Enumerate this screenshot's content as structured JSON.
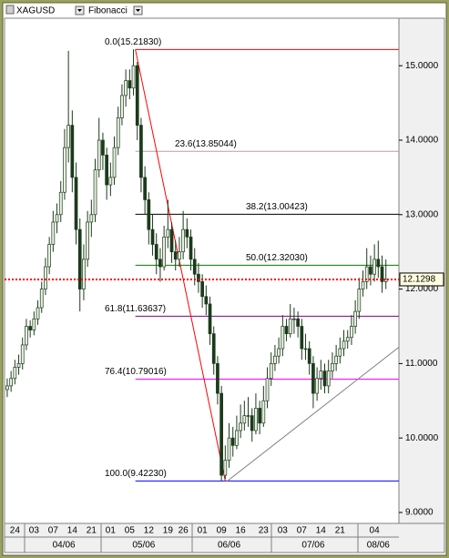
{
  "chart_data": {
    "type": "candlestick",
    "symbol": "XAGUSD",
    "indicator": "Fibonacci",
    "xlim": [
      -0.7,
      102.4
    ],
    "ylim": [
      8.853,
      15.638
    ],
    "yticks": [
      {
        "value": 15,
        "label": "15.0000"
      },
      {
        "value": 14,
        "label": "14.0000"
      },
      {
        "value": 13,
        "label": "13.0000"
      },
      {
        "value": 12,
        "label": "12.0000"
      },
      {
        "value": 11,
        "label": "11.0000"
      },
      {
        "value": 10,
        "label": "10.0000"
      },
      {
        "value": 9,
        "label": "9.0000"
      }
    ],
    "xticks": [
      {
        "value": 2,
        "label": "24"
      },
      {
        "value": 7,
        "label": "03"
      },
      {
        "value": 12,
        "label": "07"
      },
      {
        "value": 17,
        "label": "14"
      },
      {
        "value": 22,
        "label": "21"
      },
      {
        "value": 27,
        "label": "01"
      },
      {
        "value": 32,
        "label": "05"
      },
      {
        "value": 37,
        "label": "12"
      },
      {
        "value": 42,
        "label": "19"
      },
      {
        "value": 46,
        "label": "26"
      },
      {
        "value": 51,
        "label": "01"
      },
      {
        "value": 56,
        "label": "09"
      },
      {
        "value": 61,
        "label": "16"
      },
      {
        "value": 67,
        "label": "23"
      },
      {
        "value": 72,
        "label": "03"
      },
      {
        "value": 77,
        "label": "07"
      },
      {
        "value": 82,
        "label": "14"
      },
      {
        "value": 87,
        "label": "21"
      },
      {
        "value": 96,
        "label": "04"
      }
    ],
    "months": [
      {
        "value": 14.8,
        "label": "04/06"
      },
      {
        "value": 35.7,
        "label": "05/06"
      },
      {
        "value": 58,
        "label": "06/06"
      },
      {
        "value": 80,
        "label": "07/06"
      },
      {
        "value": 97,
        "label": "08/06"
      }
    ],
    "up_color": "#e8f0e0",
    "down_color": "#1c3a1c",
    "candles": [
      [
        10.65,
        10.8,
        10.55,
        10.7
      ],
      [
        10.7,
        10.9,
        10.62,
        10.8
      ],
      [
        10.8,
        11.05,
        10.72,
        10.95
      ],
      [
        10.95,
        11.12,
        10.85,
        11.0
      ],
      [
        11.0,
        11.35,
        10.92,
        11.25
      ],
      [
        11.25,
        11.6,
        11.18,
        11.5
      ],
      [
        11.5,
        11.58,
        11.35,
        11.45
      ],
      [
        11.45,
        11.7,
        11.38,
        11.6
      ],
      [
        11.6,
        11.85,
        11.52,
        11.75
      ],
      [
        11.75,
        12.1,
        11.68,
        12.0
      ],
      [
        12.0,
        12.42,
        11.92,
        12.3
      ],
      [
        12.3,
        12.7,
        12.2,
        12.6
      ],
      [
        12.6,
        13.05,
        12.5,
        12.9
      ],
      [
        12.9,
        13.15,
        12.75,
        13.0
      ],
      [
        13.0,
        13.45,
        12.9,
        13.3
      ],
      [
        13.3,
        14.15,
        13.2,
        13.9
      ],
      [
        13.9,
        15.2,
        13.7,
        14.2
      ],
      [
        14.2,
        14.4,
        13.3,
        13.5
      ],
      [
        13.5,
        13.7,
        12.6,
        12.8
      ],
      [
        12.8,
        12.95,
        11.7,
        12.0
      ],
      [
        12.0,
        12.6,
        11.85,
        12.4
      ],
      [
        12.4,
        13.05,
        12.3,
        12.9
      ],
      [
        12.9,
        13.2,
        12.7,
        13.0
      ],
      [
        13.0,
        13.75,
        12.9,
        13.6
      ],
      [
        13.6,
        14.3,
        13.5,
        14.0
      ],
      [
        14.0,
        14.1,
        13.6,
        13.8
      ],
      [
        13.8,
        13.9,
        13.2,
        13.4
      ],
      [
        13.4,
        13.7,
        13.25,
        13.5
      ],
      [
        13.5,
        14.05,
        13.4,
        13.9
      ],
      [
        13.9,
        14.45,
        13.8,
        14.3
      ],
      [
        14.3,
        14.75,
        14.2,
        14.6
      ],
      [
        14.6,
        14.95,
        14.45,
        14.8
      ],
      [
        14.8,
        14.95,
        14.55,
        14.7
      ],
      [
        14.7,
        15.22,
        14.6,
        15.0
      ],
      [
        15.0,
        15.05,
        14.0,
        14.2
      ],
      [
        14.2,
        14.3,
        13.3,
        13.5
      ],
      [
        13.5,
        13.65,
        13.0,
        13.2
      ],
      [
        13.2,
        13.3,
        12.6,
        12.8
      ],
      [
        12.8,
        13.0,
        12.45,
        12.6
      ],
      [
        12.6,
        12.75,
        12.2,
        12.4
      ],
      [
        12.4,
        12.55,
        12.1,
        12.3
      ],
      [
        12.3,
        12.85,
        12.25,
        12.7
      ],
      [
        12.7,
        13.2,
        12.55,
        12.8
      ],
      [
        12.8,
        12.9,
        12.35,
        12.5
      ],
      [
        12.5,
        12.65,
        12.25,
        12.4
      ],
      [
        12.4,
        12.7,
        12.3,
        12.5
      ],
      [
        12.5,
        13.05,
        12.4,
        12.8
      ],
      [
        12.8,
        12.95,
        12.55,
        12.7
      ],
      [
        12.7,
        12.8,
        12.25,
        12.4
      ],
      [
        12.4,
        12.55,
        12.05,
        12.2
      ],
      [
        12.2,
        12.35,
        11.95,
        12.1
      ],
      [
        12.1,
        12.2,
        11.75,
        11.9
      ],
      [
        11.9,
        12.05,
        11.65,
        11.8
      ],
      [
        11.8,
        11.9,
        11.25,
        11.4
      ],
      [
        11.4,
        11.5,
        10.85,
        11.0
      ],
      [
        11.0,
        11.1,
        10.45,
        10.6
      ],
      [
        10.6,
        10.7,
        9.42,
        9.5
      ],
      [
        9.5,
        9.9,
        9.45,
        9.7
      ],
      [
        9.7,
        10.2,
        9.6,
        10.0
      ],
      [
        10.0,
        10.15,
        9.75,
        9.9
      ],
      [
        9.9,
        10.3,
        9.85,
        10.1
      ],
      [
        10.1,
        10.45,
        10.0,
        10.2
      ],
      [
        10.2,
        10.5,
        10.1,
        10.3
      ],
      [
        10.3,
        10.55,
        10.15,
        10.3
      ],
      [
        10.3,
        10.4,
        9.95,
        10.1
      ],
      [
        10.1,
        10.6,
        10.05,
        10.4
      ],
      [
        10.4,
        10.5,
        10.05,
        10.2
      ],
      [
        10.2,
        10.7,
        10.15,
        10.5
      ],
      [
        10.5,
        10.95,
        10.4,
        10.8
      ],
      [
        10.8,
        11.15,
        10.7,
        11.0
      ],
      [
        11.0,
        11.25,
        10.9,
        11.1
      ],
      [
        11.1,
        11.35,
        11.0,
        11.2
      ],
      [
        11.2,
        11.65,
        11.1,
        11.5
      ],
      [
        11.5,
        11.6,
        11.3,
        11.4
      ],
      [
        11.4,
        11.8,
        11.35,
        11.6
      ],
      [
        11.6,
        11.75,
        11.4,
        11.6
      ],
      [
        11.6,
        11.7,
        11.35,
        11.5
      ],
      [
        11.5,
        11.6,
        11.05,
        11.2
      ],
      [
        11.2,
        11.4,
        11.05,
        11.2
      ],
      [
        11.2,
        11.3,
        10.85,
        11.0
      ],
      [
        11.0,
        11.1,
        10.4,
        10.6
      ],
      [
        10.6,
        10.95,
        10.5,
        10.8
      ],
      [
        10.8,
        11.05,
        10.65,
        10.9
      ],
      [
        10.9,
        11.0,
        10.6,
        10.7
      ],
      [
        10.7,
        11.05,
        10.6,
        10.9
      ],
      [
        10.9,
        11.15,
        10.8,
        11.0
      ],
      [
        11.0,
        11.25,
        10.9,
        11.1
      ],
      [
        11.1,
        11.35,
        11.0,
        11.2
      ],
      [
        11.2,
        11.45,
        11.1,
        11.3
      ],
      [
        11.3,
        11.45,
        11.2,
        11.35
      ],
      [
        11.35,
        11.65,
        11.25,
        11.5
      ],
      [
        11.5,
        11.85,
        11.4,
        11.7
      ],
      [
        11.7,
        12.15,
        11.6,
        12.0
      ],
      [
        12.0,
        12.25,
        11.9,
        12.1
      ],
      [
        12.1,
        12.55,
        12.0,
        12.3
      ],
      [
        12.3,
        12.45,
        12.05,
        12.2
      ],
      [
        12.2,
        12.6,
        12.1,
        12.4
      ],
      [
        12.4,
        12.65,
        12.15,
        12.3
      ],
      [
        12.3,
        12.45,
        11.95,
        12.1
      ],
      [
        12.1,
        12.4,
        12.0,
        12.13
      ]
    ],
    "fib_start": 33.5,
    "fib_levels": [
      {
        "label": "0.0(15.21830)",
        "value": 15.2183,
        "color": "#ff0000"
      },
      {
        "label": "23.6(13.85044)",
        "value": 13.85044,
        "color": "#b8a0a0"
      },
      {
        "label": "38.2(13.00423)",
        "value": 13.00423,
        "color": "#000000"
      },
      {
        "label": "50.0(12.32030)",
        "value": 12.3203,
        "color": "#008000"
      },
      {
        "label": "61.8(11.63637)",
        "value": 11.63637,
        "color": "#800080"
      },
      {
        "label": "76.4(10.79016)",
        "value": 10.79016,
        "color": "#ff00ff"
      },
      {
        "label": "100.0(9.42230)",
        "value": 9.4223,
        "color": "#0000ff"
      }
    ],
    "trendlines": [
      {
        "x": [
          33.5,
          57
        ],
        "y": [
          15.2183,
          9.4223
        ],
        "color": "#ff0000"
      },
      {
        "x": [
          57.5,
          102.4
        ],
        "y": [
          9.42,
          11.22
        ],
        "color": "#808080"
      }
    ],
    "last_price": 12.1298,
    "last_color": "#ff0000"
  }
}
